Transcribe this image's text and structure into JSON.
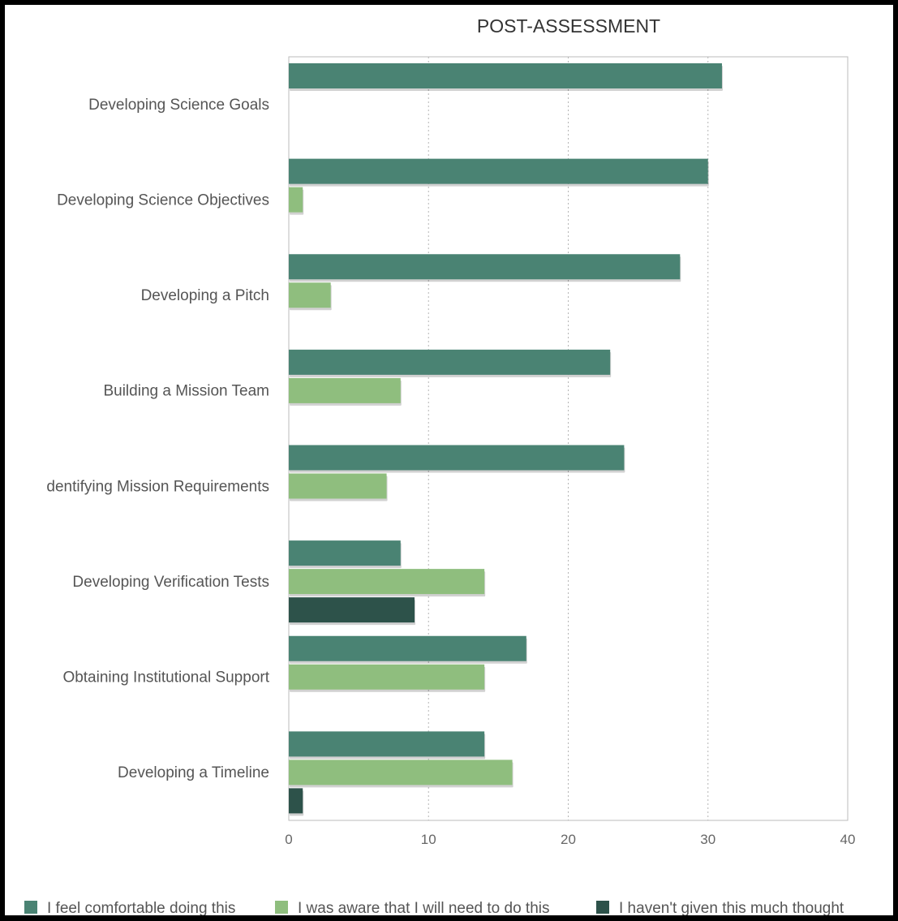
{
  "chart_data": {
    "type": "bar",
    "orientation": "horizontal",
    "title": "POST-ASSESSMENT",
    "xlabel": "",
    "ylabel": "",
    "xlim": [
      0,
      40
    ],
    "x_ticks": [
      "0",
      "10",
      "20",
      "30",
      "40"
    ],
    "grid": "vertical dotted",
    "legend_position": "bottom",
    "categories": [
      "Developing Science Goals",
      "Developing Science Objectives",
      "Developing a Pitch",
      "Building a Mission Team",
      "dentifying Mission Requirements",
      "Developing Verification Tests",
      "Obtaining Institutional Support",
      "Developing a Timeline"
    ],
    "series": [
      {
        "name": "I feel comfortable doing this",
        "color": "#4a8373",
        "values": [
          31,
          30,
          28,
          23,
          24,
          8,
          17,
          14
        ]
      },
      {
        "name": "I was aware that I will need to do this",
        "color": "#8fbe7e",
        "values": [
          0,
          1,
          3,
          8,
          7,
          14,
          14,
          16
        ]
      },
      {
        "name": "I haven't given this much thought",
        "color": "#2d524a",
        "values": [
          0,
          0,
          0,
          0,
          0,
          9,
          0,
          1
        ]
      }
    ]
  }
}
